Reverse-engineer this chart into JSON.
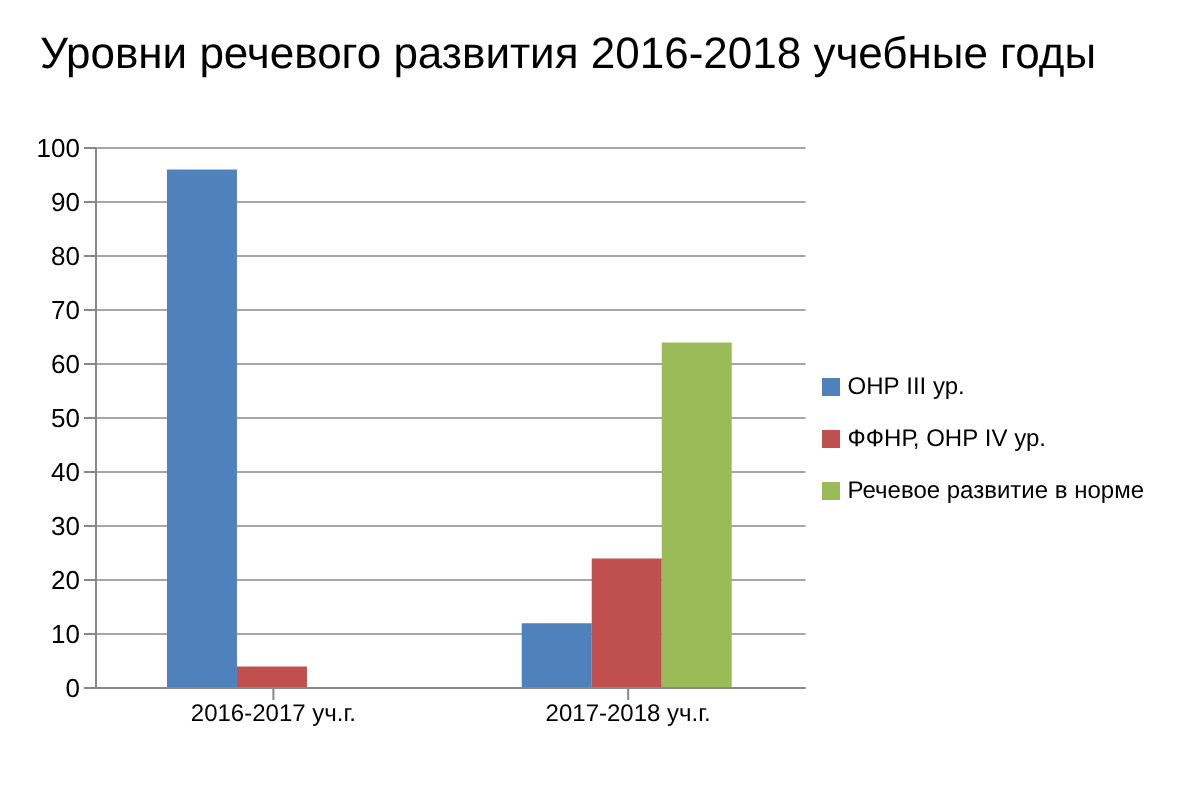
{
  "chart_data": {
    "type": "bar",
    "title": "Уровни речевого развития 2016-2018 учебные годы",
    "categories": [
      "2016-2017 уч.г.",
      "2017-2018 уч.г."
    ],
    "series": [
      {
        "name": "ОНР III ур.",
        "color": "#4f81bd",
        "values": [
          96,
          12
        ]
      },
      {
        "name": "ФФНР, ОНР IV ур.",
        "color": "#c0504d",
        "values": [
          4,
          24
        ]
      },
      {
        "name": "Речевое развитие в норме",
        "color": "#9bbb59",
        "values": [
          0,
          64
        ]
      }
    ],
    "ylim": [
      0,
      100
    ],
    "yticks": [
      0,
      10,
      20,
      30,
      40,
      50,
      60,
      70,
      80,
      90,
      100
    ],
    "grid": "y",
    "legend": "right"
  }
}
